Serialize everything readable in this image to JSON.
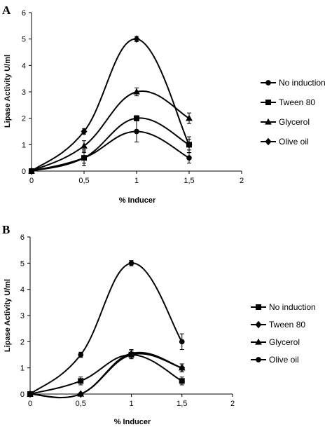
{
  "chart_data": [
    {
      "panel": "A",
      "type": "line",
      "xlabel": "% Inducer",
      "ylabel": "Lipase Activity U/ml",
      "xlim": [
        0,
        2
      ],
      "ylim": [
        0,
        6
      ],
      "xticks": [
        "0",
        "0,5",
        "1",
        "1,5",
        "2"
      ],
      "yticks": [
        "0",
        "1",
        "2",
        "3",
        "4",
        "5",
        "6"
      ],
      "legend_position": "right",
      "series": [
        {
          "name": "No induction",
          "marker": "circle",
          "x": [
            0,
            0.5,
            1,
            1.5
          ],
          "y": [
            0,
            0.5,
            1.5,
            0.5
          ],
          "err": [
            0,
            0.3,
            0.4,
            0.2
          ]
        },
        {
          "name": "Tween 80",
          "marker": "square",
          "x": [
            0,
            0.5,
            1,
            1.5
          ],
          "y": [
            0,
            0.5,
            2.0,
            1.0
          ],
          "err": [
            0,
            0.2,
            0.1,
            0.2
          ]
        },
        {
          "name": "Glycerol",
          "marker": "triangle",
          "x": [
            0,
            0.5,
            1,
            1.5
          ],
          "y": [
            0,
            0.95,
            3.0,
            2.0
          ],
          "err": [
            0,
            0.2,
            0.15,
            0.2
          ]
        },
        {
          "name": "Olive oil",
          "marker": "diamond",
          "x": [
            0,
            0.5,
            1,
            1.5
          ],
          "y": [
            0,
            1.5,
            5.0,
            1.0
          ],
          "err": [
            0,
            0.1,
            0.1,
            0.3
          ]
        }
      ]
    },
    {
      "panel": "B",
      "type": "line",
      "xlabel": "% Inducer",
      "ylabel": "Lipase Activity U/ml",
      "xlim": [
        0,
        2
      ],
      "ylim": [
        0,
        6
      ],
      "xticks": [
        "0",
        "0,5",
        "1",
        "1,5",
        "2"
      ],
      "yticks": [
        "0",
        "1",
        "2",
        "3",
        "4",
        "5",
        "6"
      ],
      "legend_position": "right",
      "series": [
        {
          "name": "No induction",
          "marker": "square",
          "x": [
            0,
            0.5,
            1,
            1.5
          ],
          "y": [
            0,
            0.5,
            1.5,
            0.5
          ],
          "err": [
            0,
            0.15,
            0.15,
            0.15
          ]
        },
        {
          "name": "Tween 80",
          "marker": "diamond",
          "x": [
            0,
            0.5,
            1,
            1.5
          ],
          "y": [
            0,
            0,
            1.5,
            1.0
          ],
          "err": [
            0,
            0,
            0.15,
            0.15
          ]
        },
        {
          "name": "Glycerol",
          "marker": "triangle",
          "x": [
            0,
            0.5,
            1,
            1.5
          ],
          "y": [
            0,
            0,
            1.55,
            1.0
          ],
          "err": [
            0,
            0,
            0.15,
            0.15
          ]
        },
        {
          "name": "Olive oil",
          "marker": "circle",
          "x": [
            0,
            0.5,
            1,
            1.5
          ],
          "y": [
            0,
            1.5,
            5.0,
            2.0
          ],
          "err": [
            0,
            0.1,
            0.1,
            0.3
          ]
        }
      ]
    }
  ]
}
